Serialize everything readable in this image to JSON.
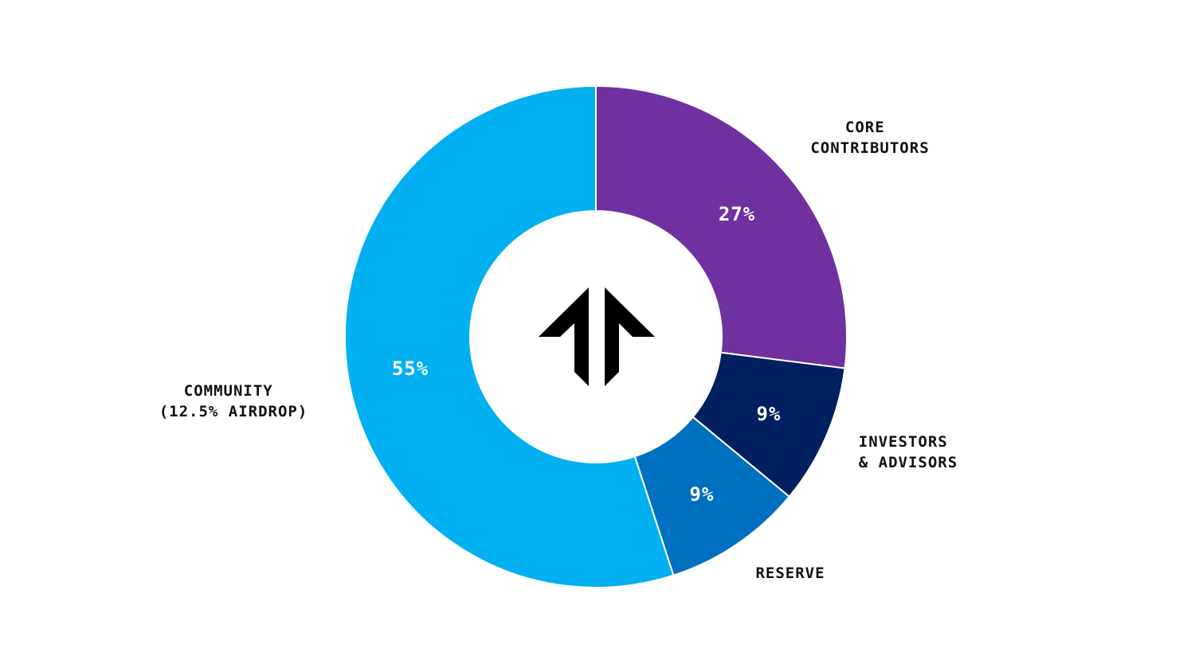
{
  "chart_data": {
    "type": "pie",
    "variant": "donut",
    "start_angle": "12 o'clock, clockwise",
    "slices": [
      {
        "label_lines": [
          "CORE",
          "CONTRIBUTORS"
        ],
        "value": 27,
        "value_label": "27%",
        "color": "#7030A0"
      },
      {
        "label_lines": [
          "INVESTORS",
          "& ADVISORS"
        ],
        "value": 9,
        "value_label": "9%",
        "color": "#002060"
      },
      {
        "label_lines": [
          "RESERVE"
        ],
        "value": 9,
        "value_label": "9%",
        "color": "#0070C0"
      },
      {
        "label_lines": [
          "COMMUNITY",
          "(12.5% AIRDROP)"
        ],
        "value": 55,
        "value_label": "55%",
        "color": "#00B0F0"
      }
    ],
    "center_logo": "upward-double-arrow-logo"
  }
}
